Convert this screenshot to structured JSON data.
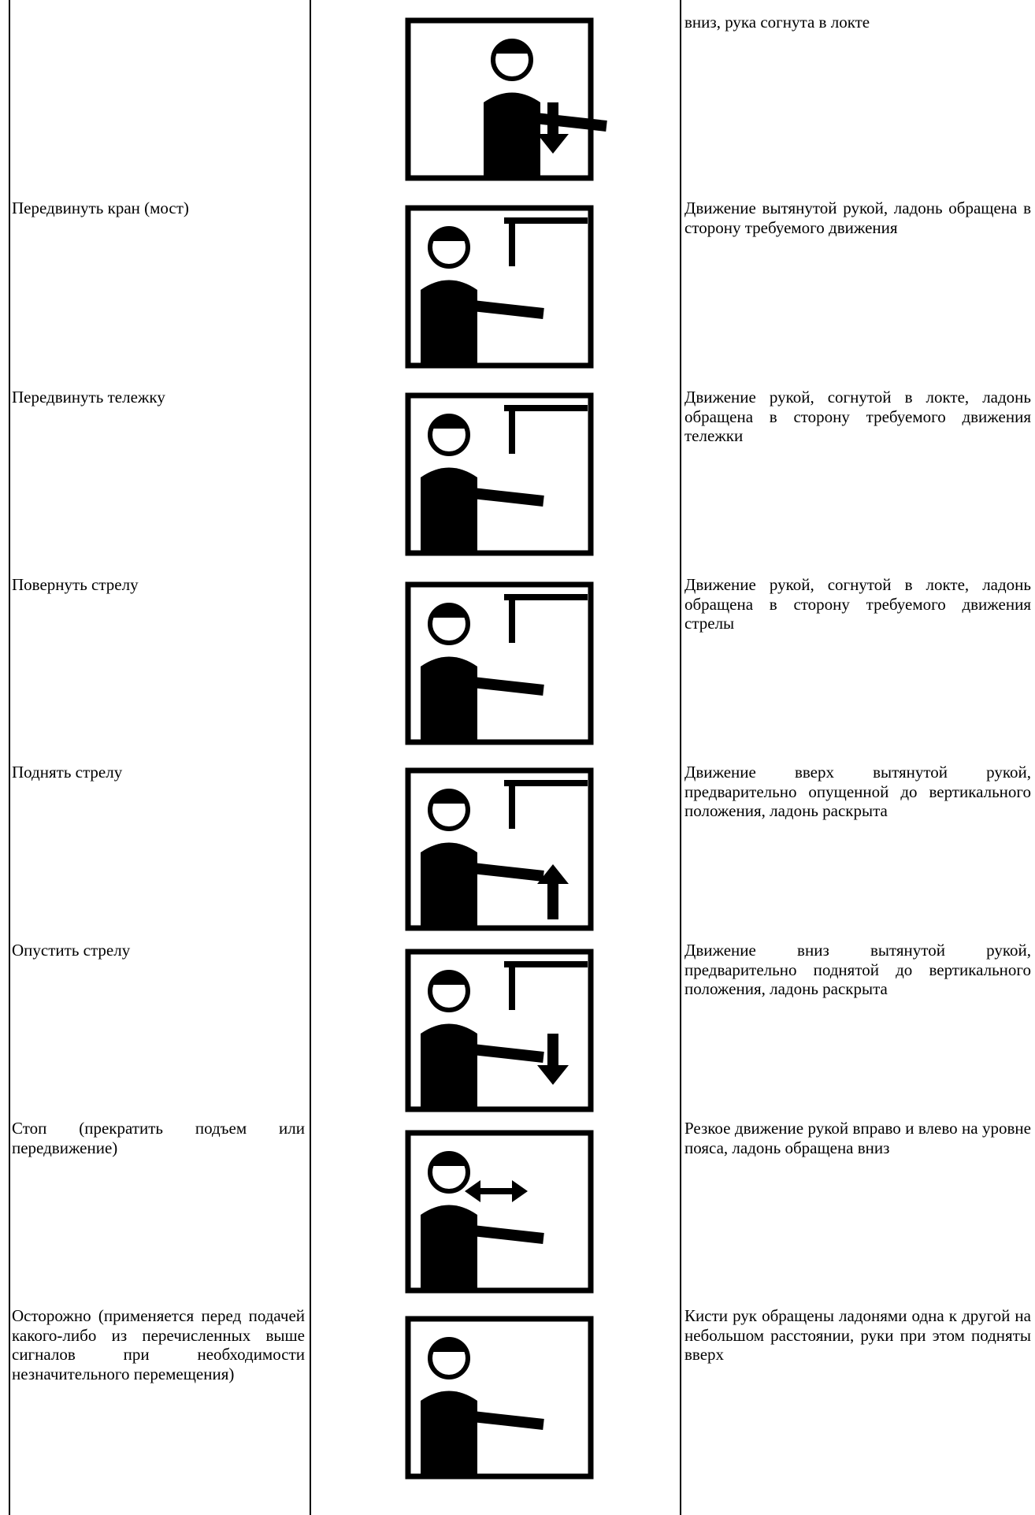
{
  "table": {
    "rows": [
      {
        "description": "вниз, рука согнута в локте"
      },
      {
        "signal": "Передвинуть кран (мост)",
        "description": "Движение вытянутой рукой, ладонь обращена в сторону требуемого движения"
      },
      {
        "signal": "Передвинуть тележку",
        "description": "Движение рукой, согнутой в локте, ладонь обращена в сторону требуемого движения тележки"
      },
      {
        "signal": "Повернуть стрелу",
        "description": "Движение рукой, согнутой в локте, ладонь обращена в сторону требуемого движения стрелы"
      },
      {
        "signal": "Поднять стрелу",
        "description": "Движение вверх вытянутой рукой, предварительно опущенной до вертикального положения, ладонь раскрыта"
      },
      {
        "signal": "Опустить стрелу",
        "description": "Движение вниз вытянутой рукой, предварительно поднятой до вертикального положения, ладонь раскрыта"
      },
      {
        "signal": "Стоп (прекратить подъем или передвижение)",
        "description": "Резкое движение рукой вправо и влево на уровне пояса, ладонь обращена вниз"
      },
      {
        "signal": "Осторожно (применяется перед подачей какого-либо из перечисленных выше сигналов при необходимости незначительного перемещения)",
        "description": "Кисти рук обращены ладонями одна к другой на небольшом расстоянии, руки при этом подняты вверх"
      }
    ]
  }
}
